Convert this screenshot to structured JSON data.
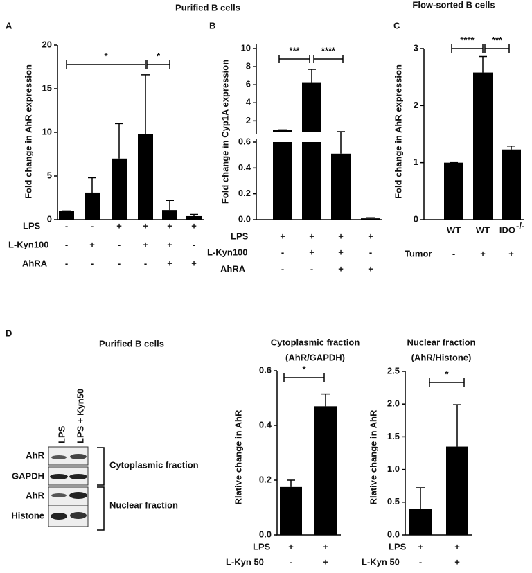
{
  "figure": {
    "title_left": "Purified B cells",
    "title_right": "Flow-sorted B cells",
    "panels": [
      "A",
      "B",
      "C",
      "D"
    ],
    "blot": {
      "title": "Purified B cells",
      "lanes": [
        "LPS",
        "LPS + Kyn50"
      ],
      "rows": [
        "AhR",
        "GAPDH",
        "AhR",
        "Histone"
      ],
      "groups": [
        "Cytoplasmic fraction",
        "Nuclear fraction"
      ]
    }
  },
  "chart_data": [
    {
      "type": "bar",
      "ylabel": "Fold change in AhR expression",
      "color": "#000000",
      "categories": [
        null,
        null,
        null,
        null,
        null,
        null
      ],
      "values": [
        1,
        3.1,
        7,
        9.8,
        1.1,
        0.4
      ],
      "errors": [
        0,
        1.7,
        4,
        6.8,
        1.1,
        0.2
      ],
      "ylim": [
        0,
        20
      ],
      "yticks": [
        0,
        5,
        10,
        15,
        20
      ],
      "conditions": [
        {
          "label": "LPS",
          "signs": [
            "-",
            "-",
            "+",
            "+",
            "+",
            "+"
          ]
        },
        {
          "label": "L-Kyn100",
          "signs": [
            "-",
            "+",
            "-",
            "+",
            "+",
            "-"
          ]
        },
        {
          "label": "AhRA",
          "signs": [
            "-",
            "-",
            "-",
            "-",
            "+",
            "+"
          ]
        }
      ],
      "significance": [
        "*",
        "*"
      ]
    },
    {
      "type": "broken-bar",
      "ylabel": "Fold change in Cyp1A expression",
      "color": "#000000",
      "categories": [
        null,
        null,
        null,
        null
      ],
      "values": [
        1,
        6.2,
        0.51,
        0.01
      ],
      "errors": [
        0,
        1.5,
        0.1,
        0.005
      ],
      "segments": [
        {
          "ylim": [
            0,
            0.6
          ],
          "yticks": [
            {
              "value": 0,
              "label": "0.0"
            },
            0.2,
            0.4,
            0.6
          ]
        },
        {
          "ylim": [
            0.8,
            10
          ],
          "yticks": [
            2,
            4,
            6,
            8,
            10
          ]
        }
      ],
      "conditions": [
        {
          "label": "LPS",
          "signs": [
            "+",
            "+",
            "+",
            "+"
          ]
        },
        {
          "label": "L-Kyn100",
          "signs": [
            "-",
            "+",
            "+",
            "-"
          ]
        },
        {
          "label": "AhRA",
          "signs": [
            "-",
            "-",
            "+",
            "+"
          ]
        }
      ],
      "significance": [
        "***",
        "****"
      ]
    },
    {
      "type": "bar",
      "ylabel": "Fold change in AhR expression",
      "color": "#000000",
      "categories": [
        "WT",
        "WT",
        "IDO"
      ],
      "category_superscripts": [
        null,
        null,
        "-/-"
      ],
      "values": [
        1,
        2.58,
        1.23
      ],
      "errors": [
        0,
        0.28,
        0.06
      ],
      "ylim": [
        0,
        3
      ],
      "yticks": [
        0,
        1,
        2,
        3
      ],
      "conditions": [
        {
          "label": "Tumor",
          "signs": [
            "-",
            "+",
            "+"
          ]
        }
      ],
      "significance": [
        "****",
        "***"
      ]
    },
    {
      "type": "bar",
      "title": "Cytoplasmic fraction",
      "subtitle": "(AhR/GAPDH)",
      "ylabel": "Rlative change in AhR",
      "color": "#000000",
      "categories": [
        null,
        null
      ],
      "values": [
        0.175,
        0.47
      ],
      "errors": [
        0.025,
        0.045
      ],
      "ylim": [
        0,
        0.6
      ],
      "yticks": [
        {
          "value": 0,
          "label": "0.0"
        },
        0.2,
        0.4,
        0.6
      ],
      "conditions": [
        {
          "label": "LPS",
          "signs": [
            "+",
            "+"
          ]
        },
        {
          "label": "L-Kyn 50",
          "signs": [
            "-",
            "+"
          ]
        }
      ],
      "significance": [
        "*"
      ]
    },
    {
      "type": "bar",
      "title": "Nuclear fraction",
      "subtitle": "(AhR/Histone)",
      "ylabel": "Rlative change in AhR",
      "color": "#000000",
      "categories": [
        null,
        null
      ],
      "values": [
        0.4,
        1.35
      ],
      "errors": [
        0.32,
        0.64
      ],
      "ylim": [
        0,
        2.5
      ],
      "yticks": [
        {
          "value": 0,
          "label": "0.0"
        },
        {
          "value": 0.5,
          "label": "0.5"
        },
        {
          "value": 1,
          "label": "1.0"
        },
        {
          "value": 1.5,
          "label": "1.5"
        },
        {
          "value": 2,
          "label": "2.0"
        },
        {
          "value": 2.5,
          "label": "2.5"
        }
      ],
      "conditions": [
        {
          "label": "LPS",
          "signs": [
            "+",
            "+"
          ]
        },
        {
          "label": "L-Kyn 50",
          "signs": [
            "-",
            "+"
          ]
        }
      ],
      "significance": [
        "*"
      ]
    }
  ]
}
